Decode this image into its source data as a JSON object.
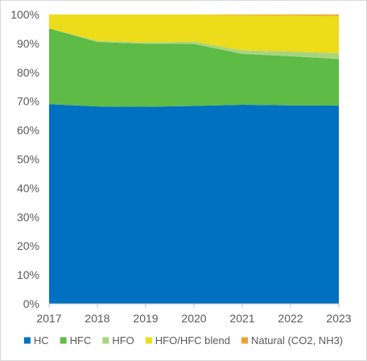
{
  "chart_data": {
    "type": "area",
    "stacked": true,
    "x": [
      "2017",
      "2018",
      "2019",
      "2020",
      "2021",
      "2022",
      "2023"
    ],
    "y_ticks": [
      "0%",
      "10%",
      "20%",
      "30%",
      "40%",
      "50%",
      "60%",
      "70%",
      "80%",
      "90%",
      "100%"
    ],
    "ylim": [
      0,
      100
    ],
    "grid": false,
    "legend_position": "bottom",
    "series": [
      {
        "name": "HC",
        "color": "#0070c0",
        "values": [
          69.0,
          68.2,
          68.1,
          68.4,
          68.8,
          68.6,
          68.5
        ]
      },
      {
        "name": "HFC",
        "color": "#5dbb46",
        "values": [
          26.2,
          22.3,
          21.8,
          21.4,
          17.6,
          17.0,
          16.1
        ]
      },
      {
        "name": "HFO",
        "color": "#a9d47f",
        "values": [
          0.0,
          0.4,
          0.5,
          0.8,
          1.2,
          1.6,
          2.0
        ]
      },
      {
        "name": "HFO/HFC blend",
        "color": "#ecdc1a",
        "values": [
          4.8,
          9.1,
          9.6,
          9.4,
          12.2,
          12.5,
          12.9
        ]
      },
      {
        "name": "Natural (CO2, NH3)",
        "color": "#f0a030",
        "values": [
          0.0,
          0.0,
          0.0,
          0.0,
          0.2,
          0.3,
          0.5
        ]
      }
    ]
  }
}
